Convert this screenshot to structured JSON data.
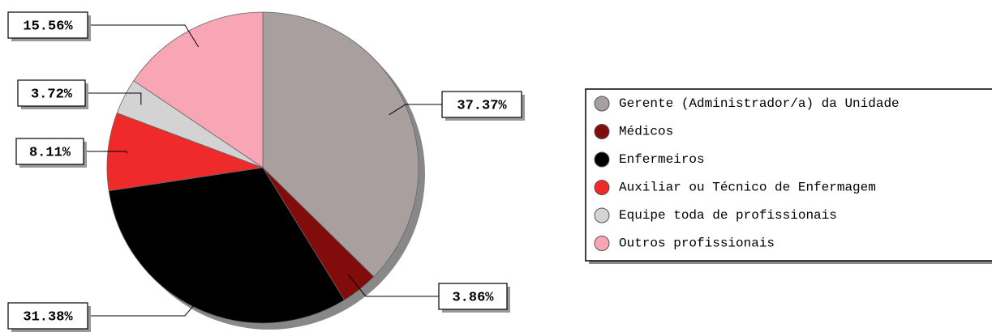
{
  "chart_data": {
    "type": "pie",
    "categories": [
      "Gerente (Administrador/a) da Unidade",
      "Médicos",
      "Enfermeiros",
      "Auxiliar ou Técnico de Enfermagem",
      "Equipe toda de profissionais",
      "Outros profissionais"
    ],
    "values": [
      37.37,
      3.86,
      31.38,
      8.11,
      3.72,
      15.56
    ],
    "value_labels": [
      "37.37%",
      "3.86%",
      "31.38%",
      "8.11%",
      "3.72%",
      "15.56%"
    ],
    "colors": [
      "#a89f9e",
      "#800c0c",
      "#000000",
      "#ee2a2a",
      "#d3d3d3",
      "#f8a5b5"
    ]
  }
}
